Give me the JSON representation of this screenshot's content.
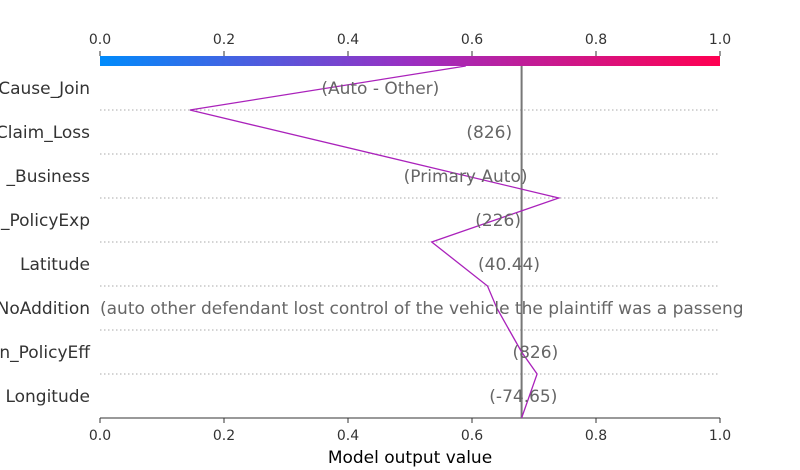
{
  "chart_data": {
    "type": "line",
    "xlabel": "Model output value",
    "xlim": [
      0.0,
      1.0
    ],
    "ticks": [
      "0.0",
      "0.2",
      "0.4",
      "0.6",
      "0.8",
      "1.0"
    ],
    "base_value": 0.68,
    "colorbar": {
      "low": "#008bfb",
      "mid": "#9b2fc2",
      "high": "#ff0052"
    },
    "line_color": "#aa22bb",
    "features": [
      {
        "name": "Cause_Join",
        "value_text": "(Auto - Other)"
      },
      {
        "name": "Claim_Loss",
        "value_text": "(826)"
      },
      {
        "name": "_Business",
        "value_text": "(Primary Auto)"
      },
      {
        "name": "_PolicyExp",
        "value_text": "(226)"
      },
      {
        "name": "Latitude",
        "value_text": "(40.44)"
      },
      {
        "name": "NoAddition",
        "value_text": "(auto   other   defendant lost control of the vehicle the plaintiff was a passeng"
      },
      {
        "name": "n_PolicyEff",
        "value_text": "(826)"
      },
      {
        "name": "Longitude",
        "value_text": "(-74.65)"
      }
    ],
    "path": [
      {
        "x": 0.68,
        "y": 8.0
      },
      {
        "x": 0.705,
        "y": 7.0
      },
      {
        "x": 0.68,
        "y": 6.5
      },
      {
        "x": 0.66,
        "y": 6.0
      },
      {
        "x": 0.64,
        "y": 5.5
      },
      {
        "x": 0.625,
        "y": 5.0
      },
      {
        "x": 0.535,
        "y": 4.0
      },
      {
        "x": 0.74,
        "y": 3.0
      },
      {
        "x": 0.145,
        "y": 1.0
      },
      {
        "x": 0.59,
        "y": 0.0
      }
    ]
  }
}
